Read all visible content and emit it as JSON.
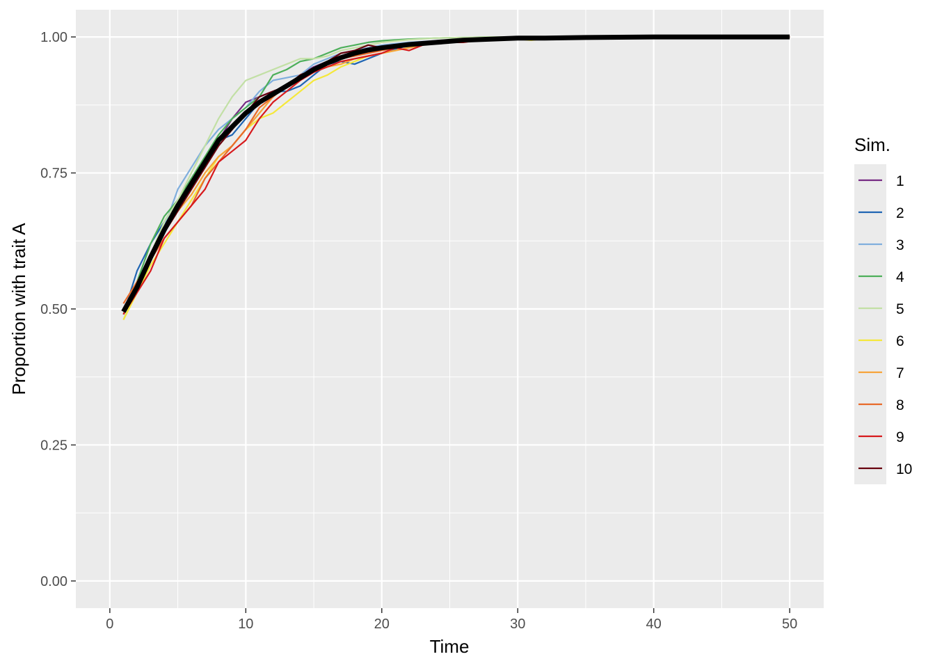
{
  "chart_data": {
    "type": "line",
    "title": "",
    "xlabel": "Time",
    "ylabel": "Proportion with trait A",
    "xlim": [
      -2.5,
      52.5
    ],
    "ylim": [
      -0.05,
      1.05
    ],
    "x_ticks": [
      0,
      10,
      20,
      30,
      40,
      50
    ],
    "x_tick_labels": [
      "0",
      "10",
      "20",
      "30",
      "40",
      "50"
    ],
    "y_ticks": [
      0,
      0.25,
      0.5,
      0.75,
      1.0
    ],
    "y_tick_labels": [
      "0.00",
      "0.25",
      "0.50",
      "0.75",
      "1.00"
    ],
    "background_color": "#EBEBEB",
    "grid": true,
    "legend": {
      "title": "Sim.",
      "position": "right"
    },
    "series": [
      {
        "name": "1",
        "color": "#762A83",
        "x": [
          1,
          2,
          3,
          4,
          5,
          6,
          7,
          8,
          9,
          10,
          11,
          12,
          13,
          14,
          15,
          16,
          17,
          18,
          19,
          20,
          22,
          24,
          26,
          28,
          30,
          35,
          40,
          45,
          50
        ],
        "y": [
          0.5,
          0.55,
          0.6,
          0.65,
          0.69,
          0.73,
          0.77,
          0.81,
          0.85,
          0.88,
          0.89,
          0.9,
          0.91,
          0.93,
          0.945,
          0.955,
          0.965,
          0.97,
          0.975,
          0.98,
          0.985,
          0.99,
          0.995,
          0.997,
          0.998,
          0.999,
          1.0,
          1.0,
          1.0
        ]
      },
      {
        "name": "2",
        "color": "#1F65B3",
        "x": [
          1,
          2,
          3,
          4,
          5,
          6,
          7,
          8,
          9,
          10,
          11,
          12,
          13,
          14,
          15,
          16,
          17,
          18,
          19,
          20,
          22,
          24,
          26,
          28,
          30,
          35,
          40,
          45,
          50
        ],
        "y": [
          0.49,
          0.57,
          0.62,
          0.66,
          0.7,
          0.74,
          0.77,
          0.81,
          0.82,
          0.85,
          0.88,
          0.9,
          0.9,
          0.91,
          0.93,
          0.95,
          0.955,
          0.95,
          0.96,
          0.97,
          0.985,
          0.99,
          0.993,
          0.995,
          0.998,
          0.999,
          1.0,
          1.0,
          1.0
        ]
      },
      {
        "name": "3",
        "color": "#7FAEDD",
        "x": [
          1,
          2,
          3,
          4,
          5,
          6,
          7,
          8,
          9,
          10,
          11,
          12,
          13,
          14,
          15,
          16,
          17,
          18,
          19,
          20,
          22,
          24,
          26,
          28,
          30,
          35,
          40,
          45,
          50
        ],
        "y": [
          0.5,
          0.55,
          0.6,
          0.65,
          0.72,
          0.76,
          0.8,
          0.83,
          0.85,
          0.87,
          0.9,
          0.92,
          0.925,
          0.93,
          0.95,
          0.96,
          0.97,
          0.975,
          0.98,
          0.985,
          0.99,
          0.993,
          0.996,
          0.998,
          0.999,
          1.0,
          1.0,
          1.0,
          1.0
        ]
      },
      {
        "name": "4",
        "color": "#4DAF5A",
        "x": [
          1,
          2,
          3,
          4,
          5,
          6,
          7,
          8,
          9,
          10,
          11,
          12,
          13,
          14,
          15,
          16,
          17,
          18,
          19,
          20,
          22,
          24,
          26,
          28,
          30,
          35,
          40,
          45,
          50
        ],
        "y": [
          0.49,
          0.55,
          0.62,
          0.67,
          0.7,
          0.74,
          0.78,
          0.82,
          0.85,
          0.87,
          0.89,
          0.93,
          0.94,
          0.955,
          0.96,
          0.97,
          0.98,
          0.985,
          0.99,
          0.993,
          0.996,
          0.998,
          0.999,
          1.0,
          1.0,
          1.0,
          1.0,
          1.0,
          1.0
        ]
      },
      {
        "name": "5",
        "color": "#C2E0A5",
        "x": [
          1,
          2,
          3,
          4,
          5,
          6,
          7,
          8,
          9,
          10,
          11,
          12,
          13,
          14,
          15,
          16,
          17,
          18,
          19,
          20,
          22,
          24,
          26,
          28,
          30,
          35,
          40,
          45,
          50
        ],
        "y": [
          0.48,
          0.54,
          0.6,
          0.66,
          0.7,
          0.75,
          0.8,
          0.85,
          0.89,
          0.92,
          0.93,
          0.94,
          0.95,
          0.96,
          0.96,
          0.965,
          0.975,
          0.98,
          0.985,
          0.99,
          0.995,
          0.998,
          0.999,
          1.0,
          1.0,
          1.0,
          1.0,
          1.0,
          1.0
        ]
      },
      {
        "name": "6",
        "color": "#F5E83A",
        "x": [
          1,
          2,
          3,
          4,
          5,
          6,
          7,
          8,
          9,
          10,
          11,
          12,
          13,
          14,
          15,
          16,
          17,
          18,
          19,
          20,
          22,
          24,
          26,
          28,
          30,
          31,
          32,
          35,
          40,
          45,
          50
        ],
        "y": [
          0.48,
          0.53,
          0.58,
          0.62,
          0.66,
          0.7,
          0.74,
          0.78,
          0.8,
          0.83,
          0.85,
          0.86,
          0.88,
          0.9,
          0.92,
          0.93,
          0.945,
          0.955,
          0.965,
          0.97,
          0.98,
          0.99,
          0.995,
          0.997,
          0.996,
          0.994,
          0.997,
          0.999,
          1.0,
          1.0,
          1.0
        ]
      },
      {
        "name": "7",
        "color": "#F7A43A",
        "x": [
          1,
          2,
          3,
          4,
          5,
          6,
          7,
          8,
          9,
          10,
          11,
          12,
          13,
          14,
          15,
          16,
          17,
          18,
          19,
          20,
          22,
          24,
          26,
          28,
          30,
          35,
          40,
          45,
          50
        ],
        "y": [
          0.49,
          0.54,
          0.59,
          0.64,
          0.68,
          0.71,
          0.75,
          0.78,
          0.8,
          0.83,
          0.86,
          0.89,
          0.91,
          0.93,
          0.94,
          0.945,
          0.95,
          0.96,
          0.965,
          0.97,
          0.98,
          0.99,
          0.995,
          0.998,
          0.999,
          1.0,
          1.0,
          1.0,
          1.0
        ]
      },
      {
        "name": "8",
        "color": "#E86A2A",
        "x": [
          1,
          2,
          3,
          4,
          5,
          6,
          7,
          8,
          9,
          10,
          11,
          12,
          13,
          14,
          15,
          16,
          17,
          18,
          19,
          20,
          22,
          24,
          26,
          28,
          30,
          35,
          40,
          45,
          50
        ],
        "y": [
          0.51,
          0.55,
          0.59,
          0.63,
          0.66,
          0.69,
          0.74,
          0.77,
          0.8,
          0.83,
          0.87,
          0.89,
          0.91,
          0.93,
          0.94,
          0.95,
          0.96,
          0.965,
          0.97,
          0.975,
          0.985,
          0.99,
          0.995,
          0.997,
          0.999,
          1.0,
          1.0,
          1.0,
          1.0
        ]
      },
      {
        "name": "9",
        "color": "#D7191C",
        "x": [
          1,
          2,
          3,
          4,
          5,
          6,
          7,
          8,
          9,
          10,
          11,
          12,
          13,
          14,
          15,
          16,
          17,
          18,
          19,
          20,
          21,
          22,
          23,
          24,
          26,
          28,
          30,
          35,
          40,
          45,
          50
        ],
        "y": [
          0.49,
          0.53,
          0.57,
          0.63,
          0.66,
          0.69,
          0.72,
          0.77,
          0.79,
          0.81,
          0.85,
          0.88,
          0.9,
          0.92,
          0.935,
          0.945,
          0.955,
          0.96,
          0.965,
          0.97,
          0.98,
          0.975,
          0.985,
          0.99,
          0.99,
          0.997,
          0.998,
          1.0,
          1.0,
          1.0,
          1.0
        ]
      },
      {
        "name": "10",
        "color": "#67000D",
        "x": [
          1,
          2,
          3,
          4,
          5,
          6,
          7,
          8,
          9,
          10,
          11,
          12,
          13,
          14,
          15,
          16,
          17,
          18,
          19,
          20,
          22,
          24,
          26,
          28,
          30,
          35,
          40,
          45,
          50
        ],
        "y": [
          0.5,
          0.54,
          0.59,
          0.64,
          0.68,
          0.72,
          0.76,
          0.8,
          0.83,
          0.86,
          0.89,
          0.9,
          0.91,
          0.93,
          0.94,
          0.955,
          0.97,
          0.975,
          0.985,
          0.98,
          0.985,
          0.99,
          0.995,
          0.998,
          0.999,
          1.0,
          1.0,
          1.0,
          1.0
        ]
      }
    ],
    "mean_line": {
      "color": "#000000",
      "x": [
        1,
        2,
        3,
        4,
        5,
        6,
        7,
        8,
        9,
        10,
        11,
        12,
        13,
        14,
        15,
        16,
        17,
        18,
        19,
        20,
        22,
        24,
        26,
        28,
        30,
        32,
        35,
        40,
        45,
        50
      ],
      "y": [
        0.495,
        0.54,
        0.595,
        0.645,
        0.69,
        0.73,
        0.77,
        0.81,
        0.835,
        0.86,
        0.88,
        0.895,
        0.91,
        0.925,
        0.94,
        0.952,
        0.962,
        0.97,
        0.976,
        0.98,
        0.986,
        0.99,
        0.994,
        0.996,
        0.998,
        0.998,
        0.999,
        1.0,
        1.0,
        1.0
      ]
    }
  }
}
